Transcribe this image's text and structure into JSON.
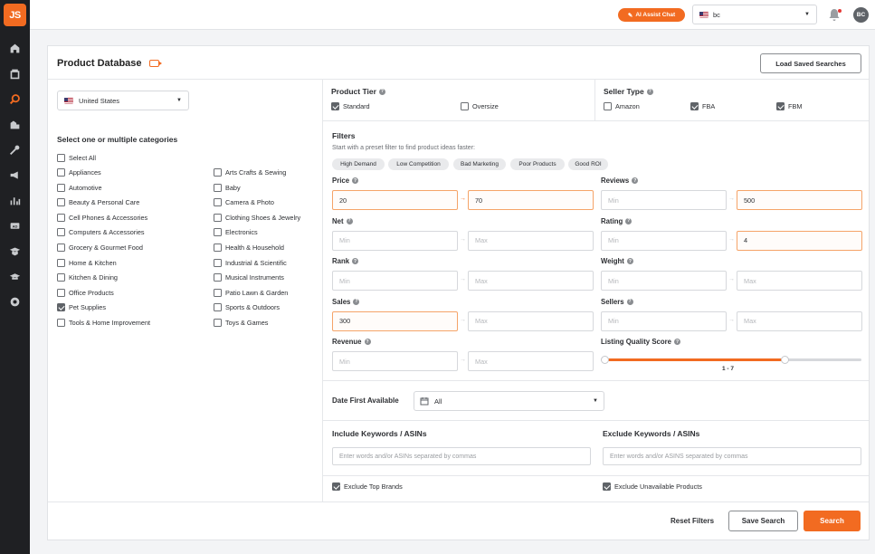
{
  "app": {
    "logo": "JS"
  },
  "sidebar": {
    "icons": [
      "home-icon",
      "product-tracker-icon",
      "product-database-icon",
      "opportunity-finder-icon",
      "keyword-scout-icon",
      "promotions-icon",
      "sales-analytics-icon",
      "advertising-icon",
      "academy-icon",
      "academy-cap-icon",
      "integrations-icon"
    ]
  },
  "header": {
    "ai_label": "AI Assist Chat",
    "marketplace": "bc",
    "avatar": "BC"
  },
  "page": {
    "title": "Product Database",
    "load_saved": "Load Saved Searches"
  },
  "country": {
    "value": "United States"
  },
  "categories": {
    "heading": "Select one or multiple categories",
    "select_all": "Select All",
    "col1": [
      {
        "label": "Appliances",
        "checked": false
      },
      {
        "label": "Automotive",
        "checked": false
      },
      {
        "label": "Beauty & Personal Care",
        "checked": false
      },
      {
        "label": "Cell Phones & Accessories",
        "checked": false
      },
      {
        "label": "Computers & Accessories",
        "checked": false
      },
      {
        "label": "Grocery & Gourmet Food",
        "checked": false
      },
      {
        "label": "Home & Kitchen",
        "checked": false
      },
      {
        "label": "Kitchen & Dining",
        "checked": false
      },
      {
        "label": "Office Products",
        "checked": false
      },
      {
        "label": "Pet Supplies",
        "checked": true
      },
      {
        "label": "Tools & Home Improvement",
        "checked": false
      }
    ],
    "col2": [
      {
        "label": "Arts Crafts & Sewing",
        "checked": false
      },
      {
        "label": "Baby",
        "checked": false
      },
      {
        "label": "Camera & Photo",
        "checked": false
      },
      {
        "label": "Clothing Shoes & Jewelry",
        "checked": false
      },
      {
        "label": "Electronics",
        "checked": false
      },
      {
        "label": "Health & Household",
        "checked": false
      },
      {
        "label": "Industrial & Scientific",
        "checked": false
      },
      {
        "label": "Musical Instruments",
        "checked": false
      },
      {
        "label": "Patio Lawn & Garden",
        "checked": false
      },
      {
        "label": "Sports & Outdoors",
        "checked": false
      },
      {
        "label": "Toys & Games",
        "checked": false
      }
    ]
  },
  "product_tier": {
    "label": "Product Tier",
    "options": [
      {
        "label": "Standard",
        "checked": true
      },
      {
        "label": "Oversize",
        "checked": false
      }
    ]
  },
  "seller_type": {
    "label": "Seller Type",
    "options": [
      {
        "label": "Amazon",
        "checked": false
      },
      {
        "label": "FBA",
        "checked": true
      },
      {
        "label": "FBM",
        "checked": true
      }
    ]
  },
  "filters": {
    "label": "Filters",
    "hint": "Start with a preset filter to find product ideas faster:",
    "presets": [
      "High Demand",
      "Low Competition",
      "Bad Marketing",
      "Poor Products",
      "Good ROI"
    ],
    "price": {
      "label": "Price",
      "min": "20",
      "max": "70"
    },
    "reviews": {
      "label": "Reviews",
      "min": "Min",
      "max": "500"
    },
    "net": {
      "label": "Net",
      "min": "Min",
      "max": "Max"
    },
    "rating": {
      "label": "Rating",
      "min": "Min",
      "max": "4"
    },
    "rank": {
      "label": "Rank",
      "min": "Min",
      "max": "Max"
    },
    "weight": {
      "label": "Weight",
      "min": "Min",
      "max": "Max"
    },
    "sales": {
      "label": "Sales",
      "min": "300",
      "max": "Max"
    },
    "sellers": {
      "label": "Sellers",
      "min": "Min",
      "max": "Max"
    },
    "revenue": {
      "label": "Revenue",
      "min": "Min",
      "max": "Max"
    },
    "lqs": {
      "label": "Listing Quality Score",
      "value": "1 - 7",
      "low": 1,
      "high": 7,
      "scale_max": 10
    }
  },
  "date_first": {
    "label": "Date First Available",
    "value": "All"
  },
  "keywords": {
    "include_label": "Include Keywords / ASINs",
    "include_placeholder": "Enter words and/or ASINs separated by commas",
    "exclude_label": "Exclude Keywords / ASINs",
    "exclude_placeholder": "Enter words and/or ASINS separated by commas"
  },
  "exclusions": {
    "top_brands": {
      "label": "Exclude Top Brands",
      "checked": true
    },
    "unavailable": {
      "label": "Exclude Unavailable Products",
      "checked": true
    }
  },
  "actions": {
    "reset": "Reset Filters",
    "save": "Save Search",
    "search": "Search"
  },
  "colors": {
    "accent": "#f26b21",
    "sidebar": "#1f2023"
  }
}
